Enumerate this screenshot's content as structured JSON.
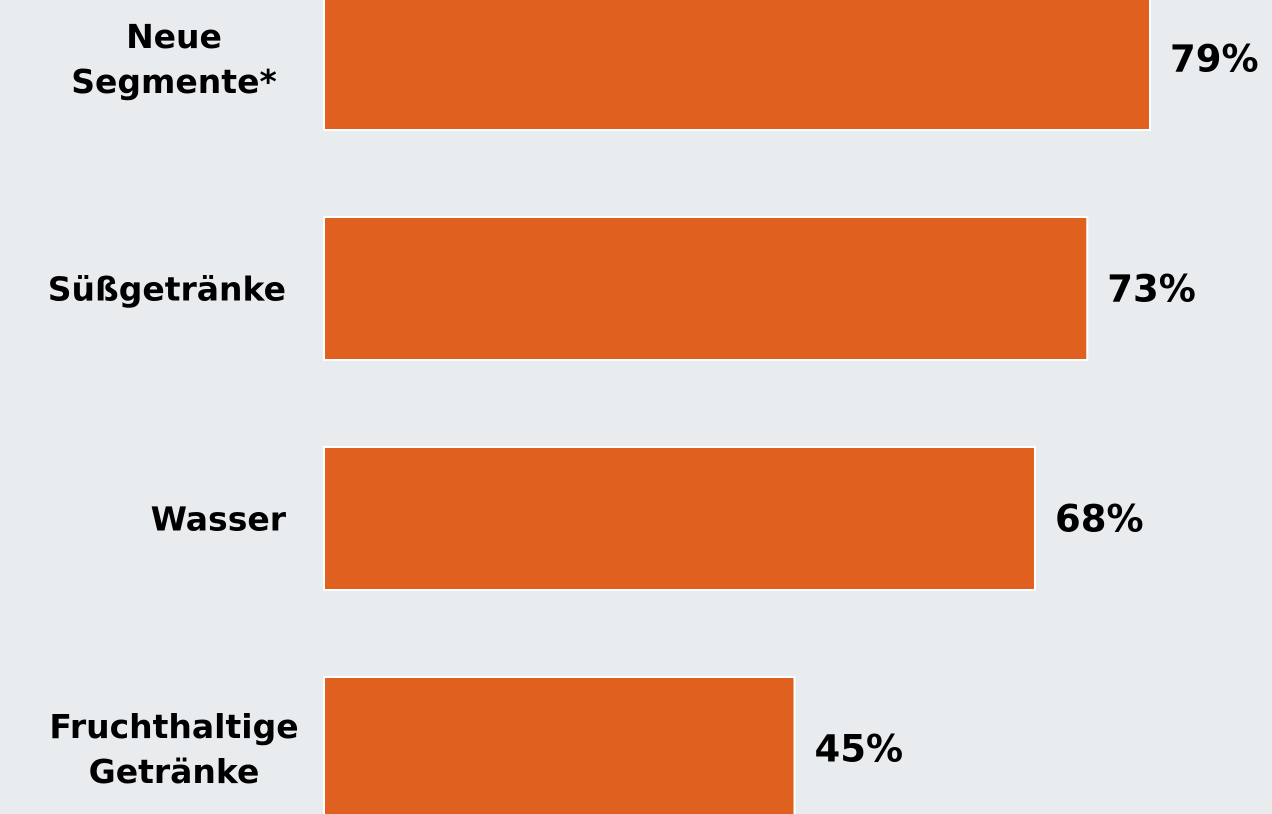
{
  "chart_data": {
    "type": "bar",
    "orientation": "horizontal",
    "categories": [
      [
        "Neue",
        "Segmente*"
      ],
      [
        "Süßgetränke"
      ],
      [
        "Wasser"
      ],
      [
        "Fruchthaltige",
        "Getränke"
      ]
    ],
    "values": [
      79,
      73,
      68,
      45
    ],
    "value_labels": [
      "79%",
      "73%",
      "68%",
      "45%"
    ],
    "xlim": [
      0,
      100
    ],
    "title": "",
    "xlabel": "",
    "ylabel": "",
    "grid": false,
    "legend": false,
    "bar_color": "#e06020",
    "background_color": "#e9ecee"
  }
}
